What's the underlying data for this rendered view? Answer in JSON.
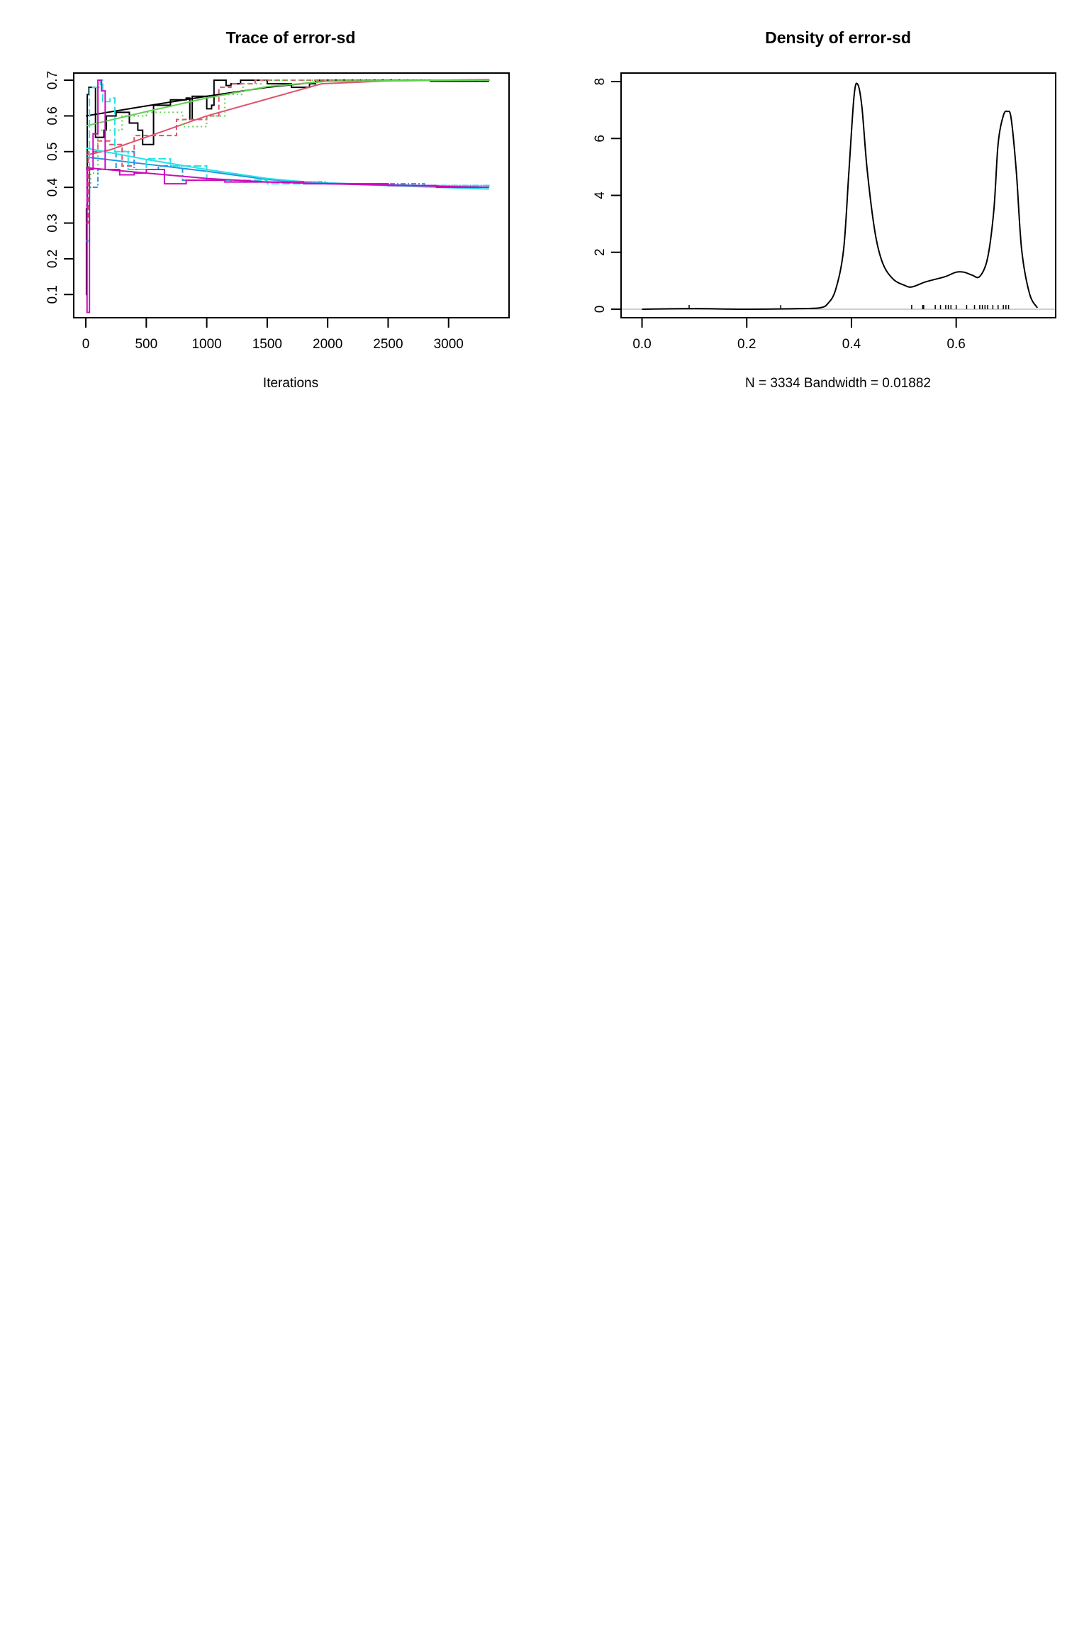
{
  "chart_data": [
    {
      "type": "line",
      "title": "Trace of error-sd",
      "xlabel": "Iterations",
      "ylabel": "",
      "xlim": [
        -100,
        3500
      ],
      "ylim": [
        0.035,
        0.72
      ],
      "xticks": [
        0,
        500,
        1000,
        1500,
        2000,
        2500,
        3000
      ],
      "xtick_labels": [
        "0",
        "500",
        "1000",
        "1500",
        "2000",
        "2500",
        "3000"
      ],
      "yticks": [
        0.1,
        0.2,
        0.3,
        0.4,
        0.5,
        0.6,
        0.7
      ],
      "ytick_labels": [
        "0.1",
        "0.2",
        "0.3",
        "0.4",
        "0.5",
        "0.6",
        "0.7"
      ],
      "grid": false,
      "series": [
        {
          "color": "#000000",
          "dash": "solid",
          "steps": [
            [
              0,
              0.1
            ],
            [
              5,
              0.34
            ],
            [
              12,
              0.66
            ],
            [
              25,
              0.68
            ],
            [
              80,
              0.54
            ],
            [
              150,
              0.56
            ],
            [
              170,
              0.6
            ],
            [
              250,
              0.61
            ],
            [
              360,
              0.58
            ],
            [
              430,
              0.56
            ],
            [
              470,
              0.52
            ],
            [
              560,
              0.63
            ],
            [
              700,
              0.645
            ],
            [
              830,
              0.65
            ],
            [
              860,
              0.59
            ],
            [
              880,
              0.655
            ],
            [
              1000,
              0.62
            ],
            [
              1040,
              0.63
            ],
            [
              1060,
              0.7
            ],
            [
              1160,
              0.685
            ],
            [
              1200,
              0.69
            ],
            [
              1280,
              0.7
            ],
            [
              1500,
              0.69
            ],
            [
              1700,
              0.68
            ],
            [
              1850,
              0.69
            ],
            [
              1900,
              0.7
            ],
            [
              2850,
              0.697
            ],
            [
              3334,
              0.697
            ]
          ],
          "smooth": [
            [
              0,
              0.6
            ],
            [
              500,
              0.628
            ],
            [
              1000,
              0.655
            ],
            [
              1500,
              0.68
            ],
            [
              2000,
              0.698
            ],
            [
              3334,
              0.7
            ]
          ]
        },
        {
          "color": "#DF536B",
          "dash": "dashed",
          "steps": [
            [
              0,
              0.3
            ],
            [
              20,
              0.5
            ],
            [
              100,
              0.53
            ],
            [
              200,
              0.52
            ],
            [
              300,
              0.46
            ],
            [
              400,
              0.545
            ],
            [
              600,
              0.545
            ],
            [
              750,
              0.59
            ],
            [
              1000,
              0.6
            ],
            [
              1100,
              0.68
            ],
            [
              1200,
              0.69
            ],
            [
              1400,
              0.7
            ],
            [
              3334,
              0.702
            ]
          ],
          "smooth": [
            [
              0,
              0.49
            ],
            [
              200,
              0.505
            ],
            [
              1000,
              0.6
            ],
            [
              1950,
              0.69
            ],
            [
              2500,
              0.698
            ],
            [
              3334,
              0.702
            ]
          ]
        },
        {
          "color": "#61D04F",
          "dash": "dotted",
          "steps": [
            [
              0,
              0.4
            ],
            [
              40,
              0.44
            ],
            [
              100,
              0.56
            ],
            [
              300,
              0.6
            ],
            [
              500,
              0.61
            ],
            [
              800,
              0.57
            ],
            [
              1000,
              0.6
            ],
            [
              1150,
              0.66
            ],
            [
              1300,
              0.69
            ],
            [
              1450,
              0.7
            ],
            [
              3334,
              0.7
            ]
          ],
          "smooth": [
            [
              0,
              0.572
            ],
            [
              500,
              0.612
            ],
            [
              1000,
              0.65
            ],
            [
              1500,
              0.682
            ],
            [
              2000,
              0.697
            ],
            [
              3334,
              0.7
            ]
          ]
        },
        {
          "color": "#2297E6",
          "dash": "dotdash",
          "steps": [
            [
              0,
              0.35
            ],
            [
              30,
              0.4
            ],
            [
              100,
              0.45
            ],
            [
              250,
              0.5
            ],
            [
              400,
              0.45
            ],
            [
              600,
              0.46
            ],
            [
              800,
              0.42
            ],
            [
              1200,
              0.415
            ],
            [
              2000,
              0.41
            ],
            [
              2800,
              0.405
            ],
            [
              3334,
              0.4
            ]
          ],
          "smooth": [
            [
              0,
              0.485
            ],
            [
              500,
              0.465
            ],
            [
              1000,
              0.445
            ],
            [
              1500,
              0.422
            ],
            [
              2000,
              0.412
            ],
            [
              3334,
              0.4
            ]
          ]
        },
        {
          "color": "#28E2E5",
          "dash": "longdash",
          "steps": [
            [
              0,
              0.25
            ],
            [
              30,
              0.68
            ],
            [
              120,
              0.7
            ],
            [
              140,
              0.64
            ],
            [
              200,
              0.65
            ],
            [
              240,
              0.5
            ],
            [
              350,
              0.45
            ],
            [
              500,
              0.48
            ],
            [
              700,
              0.46
            ],
            [
              1000,
              0.42
            ],
            [
              1500,
              0.41
            ],
            [
              2500,
              0.405
            ],
            [
              3334,
              0.395
            ]
          ],
          "smooth": [
            [
              0,
              0.51
            ],
            [
              500,
              0.478
            ],
            [
              1000,
              0.45
            ],
            [
              1500,
              0.425
            ],
            [
              1900,
              0.412
            ],
            [
              3334,
              0.395
            ]
          ]
        },
        {
          "color": "#CD0BBC",
          "dash": "solid",
          "steps": [
            [
              0,
              0.45
            ],
            [
              10,
              0.05
            ],
            [
              30,
              0.45
            ],
            [
              60,
              0.55
            ],
            [
              100,
              0.7
            ],
            [
              130,
              0.67
            ],
            [
              160,
              0.45
            ],
            [
              280,
              0.435
            ],
            [
              400,
              0.44
            ],
            [
              500,
              0.45
            ],
            [
              650,
              0.41
            ],
            [
              830,
              0.42
            ],
            [
              1150,
              0.415
            ],
            [
              1800,
              0.41
            ],
            [
              2500,
              0.405
            ],
            [
              2900,
              0.4
            ],
            [
              3334,
              0.4
            ]
          ],
          "smooth": [
            [
              0,
              0.455
            ],
            [
              500,
              0.44
            ],
            [
              1000,
              0.425
            ],
            [
              1500,
              0.415
            ],
            [
              2000,
              0.41
            ],
            [
              3334,
              0.4
            ]
          ]
        }
      ]
    },
    {
      "type": "line",
      "title": "Density of error-sd",
      "xlabel": "N = 3334   Bandwidth = 0.01882",
      "ylabel": "",
      "xlim": [
        -0.04,
        0.79
      ],
      "ylim": [
        -0.3,
        8.3
      ],
      "xticks": [
        0.0,
        0.2,
        0.4,
        0.6
      ],
      "xtick_labels": [
        "0.0",
        "0.2",
        "0.4",
        "0.6"
      ],
      "yticks": [
        0,
        2,
        4,
        6,
        8
      ],
      "ytick_labels": [
        "0",
        "2",
        "4",
        "6",
        "8"
      ],
      "grid": false,
      "baseline_color": "#BEBEBE",
      "curve": [
        [
          0.0,
          0.0
        ],
        [
          0.1,
          0.02
        ],
        [
          0.2,
          0.0
        ],
        [
          0.3,
          0.02
        ],
        [
          0.34,
          0.05
        ],
        [
          0.355,
          0.2
        ],
        [
          0.37,
          0.7
        ],
        [
          0.385,
          2.1
        ],
        [
          0.395,
          4.8
        ],
        [
          0.405,
          7.5
        ],
        [
          0.412,
          7.9
        ],
        [
          0.42,
          7.1
        ],
        [
          0.43,
          4.9
        ],
        [
          0.445,
          2.7
        ],
        [
          0.46,
          1.6
        ],
        [
          0.48,
          1.05
        ],
        [
          0.5,
          0.85
        ],
        [
          0.515,
          0.78
        ],
        [
          0.54,
          0.95
        ],
        [
          0.56,
          1.05
        ],
        [
          0.58,
          1.15
        ],
        [
          0.6,
          1.3
        ],
        [
          0.615,
          1.3
        ],
        [
          0.63,
          1.2
        ],
        [
          0.645,
          1.15
        ],
        [
          0.66,
          1.8
        ],
        [
          0.672,
          3.5
        ],
        [
          0.68,
          5.8
        ],
        [
          0.69,
          6.8
        ],
        [
          0.698,
          6.95
        ],
        [
          0.705,
          6.7
        ],
        [
          0.715,
          4.8
        ],
        [
          0.725,
          2.1
        ],
        [
          0.74,
          0.55
        ],
        [
          0.755,
          0.05
        ]
      ],
      "rug": [
        0.09,
        0.265,
        0.515,
        0.536,
        0.538,
        0.56,
        0.57,
        0.58,
        0.585,
        0.59,
        0.6,
        0.62,
        0.635,
        0.645,
        0.65,
        0.655,
        0.66,
        0.67,
        0.68,
        0.69,
        0.695,
        0.7
      ]
    }
  ]
}
